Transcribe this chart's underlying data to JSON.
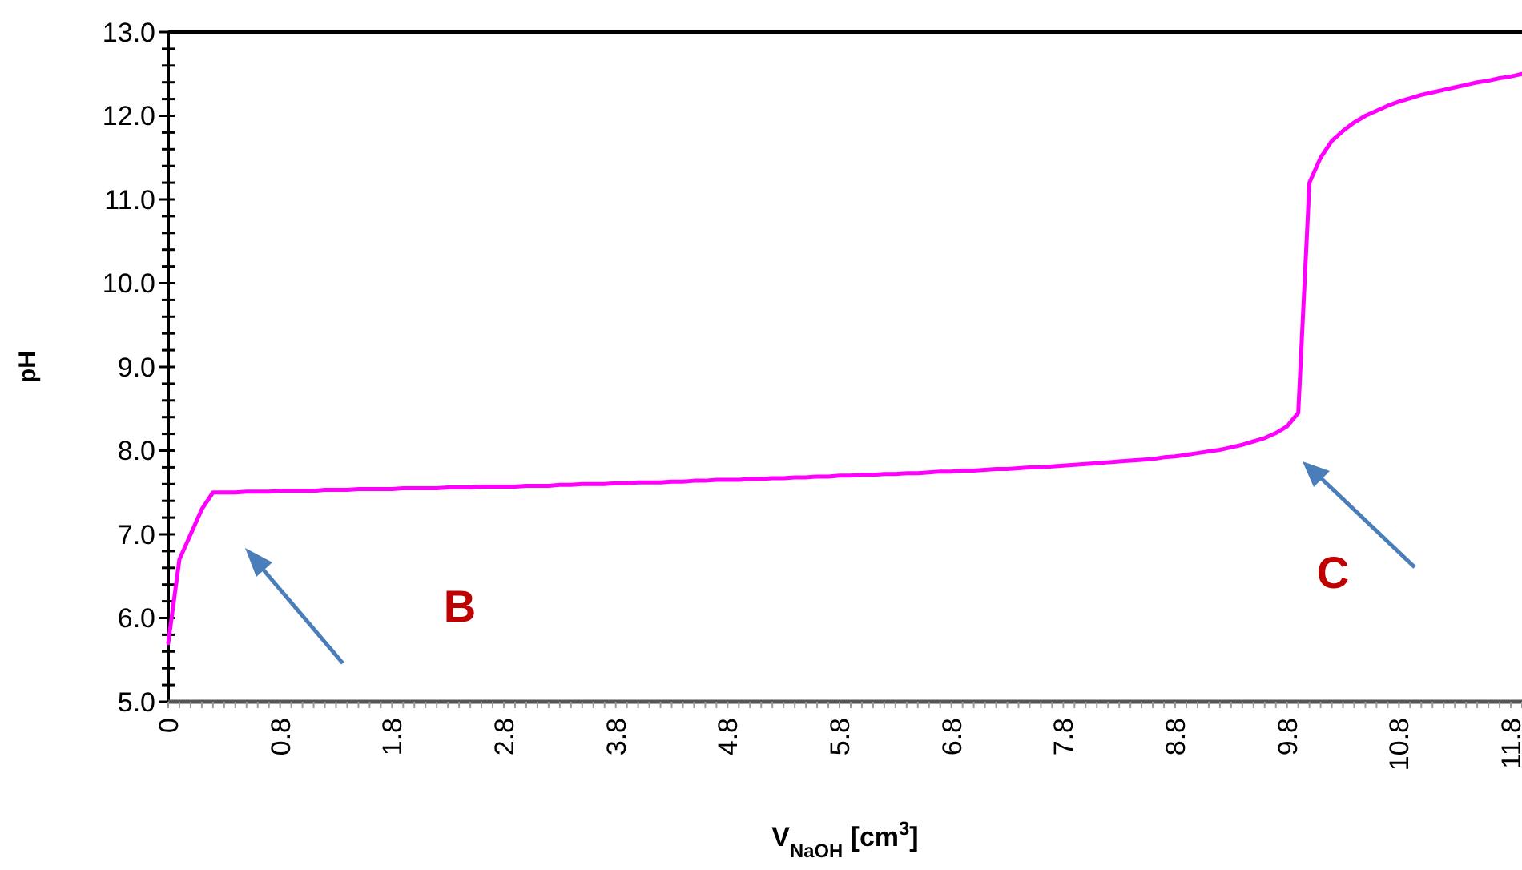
{
  "chart_data": {
    "type": "line",
    "xlabel": "V$_{NaOH}$ [cm$^{3}$]",
    "ylabel": "pH",
    "categories": [
      "0",
      null,
      null,
      null,
      null,
      null,
      null,
      null,
      null,
      null,
      "0.8",
      null,
      null,
      null,
      null,
      null,
      null,
      null,
      null,
      null,
      "1.8",
      null,
      null,
      null,
      null,
      null,
      null,
      null,
      null,
      null,
      "2.8",
      null,
      null,
      null,
      null,
      null,
      null,
      null,
      null,
      null,
      "3.8",
      null,
      null,
      null,
      null,
      null,
      null,
      null,
      null,
      null,
      "4.8",
      null,
      null,
      null,
      null,
      null,
      null,
      null,
      null,
      null,
      "5.8",
      null,
      null,
      null,
      null,
      null,
      null,
      null,
      null,
      null,
      "6.8",
      null,
      null,
      null,
      null,
      null,
      null,
      null,
      null,
      null,
      "7.8",
      null,
      null,
      null,
      null,
      null,
      null,
      null,
      null,
      null,
      "8.8",
      null,
      null,
      null,
      null,
      null,
      null,
      null,
      null,
      null,
      "9.8",
      null,
      null,
      null,
      null,
      null,
      null,
      null,
      null,
      null,
      "10.8",
      null,
      null,
      null,
      null,
      null,
      null,
      null,
      null,
      null,
      "11.8",
      null
    ],
    "series": [
      {
        "color": "#ff00ff",
        "values": [
          5.7,
          6.7,
          7.0,
          7.3,
          7.5,
          7.5,
          7.5,
          7.51,
          7.51,
          7.51,
          7.52,
          7.52,
          7.52,
          7.52,
          7.53,
          7.53,
          7.53,
          7.54,
          7.54,
          7.54,
          7.54,
          7.55,
          7.55,
          7.55,
          7.55,
          7.56,
          7.56,
          7.56,
          7.57,
          7.57,
          7.57,
          7.57,
          7.58,
          7.58,
          7.58,
          7.59,
          7.59,
          7.6,
          7.6,
          7.6,
          7.61,
          7.61,
          7.62,
          7.62,
          7.62,
          7.63,
          7.63,
          7.64,
          7.64,
          7.65,
          7.65,
          7.65,
          7.66,
          7.66,
          7.67,
          7.67,
          7.68,
          7.68,
          7.69,
          7.69,
          7.7,
          7.7,
          7.71,
          7.71,
          7.72,
          7.72,
          7.73,
          7.73,
          7.74,
          7.75,
          7.75,
          7.76,
          7.76,
          7.77,
          7.78,
          7.78,
          7.79,
          7.8,
          7.8,
          7.81,
          7.82,
          7.83,
          7.84,
          7.85,
          7.86,
          7.87,
          7.88,
          7.89,
          7.9,
          7.92,
          7.93,
          7.95,
          7.97,
          7.99,
          8.01,
          8.04,
          8.07,
          8.11,
          8.15,
          8.21,
          8.29,
          8.45,
          11.2,
          11.5,
          11.7,
          11.82,
          11.92,
          12.0,
          12.06,
          12.12,
          12.17,
          12.21,
          12.25,
          12.28,
          12.31,
          12.34,
          12.37,
          12.4,
          12.42,
          12.45,
          12.47,
          12.5
        ]
      }
    ],
    "ylim": [
      5,
      13
    ],
    "yticks": [
      {
        "value": 5,
        "label": "5.0"
      },
      {
        "value": 5.2,
        "label": null
      },
      {
        "value": 5.4,
        "label": null
      },
      {
        "value": 5.6,
        "label": null
      },
      {
        "value": 5.8,
        "label": null
      },
      {
        "value": 6,
        "label": "6.0"
      },
      {
        "value": 6.2,
        "label": null
      },
      {
        "value": 6.4,
        "label": null
      },
      {
        "value": 6.6,
        "label": null
      },
      {
        "value": 6.8,
        "label": null
      },
      {
        "value": 7,
        "label": "7.0"
      },
      {
        "value": 7.2,
        "label": null
      },
      {
        "value": 7.4,
        "label": null
      },
      {
        "value": 7.6,
        "label": null
      },
      {
        "value": 7.8,
        "label": null
      },
      {
        "value": 8,
        "label": "8.0"
      },
      {
        "value": 8.2,
        "label": null
      },
      {
        "value": 8.4,
        "label": null
      },
      {
        "value": 8.6,
        "label": null
      },
      {
        "value": 8.8,
        "label": null
      },
      {
        "value": 9,
        "label": "9.0"
      },
      {
        "value": 9.2,
        "label": null
      },
      {
        "value": 9.4,
        "label": null
      },
      {
        "value": 9.6,
        "label": null
      },
      {
        "value": 9.8,
        "label": null
      },
      {
        "value": 10,
        "label": "10.0"
      },
      {
        "value": 10.2,
        "label": null
      },
      {
        "value": 10.4,
        "label": null
      },
      {
        "value": 10.6,
        "label": null
      },
      {
        "value": 10.8,
        "label": null
      },
      {
        "value": 11,
        "label": "11.0"
      },
      {
        "value": 11.2,
        "label": null
      },
      {
        "value": 11.4,
        "label": null
      },
      {
        "value": 11.6,
        "label": null
      },
      {
        "value": 11.8,
        "label": null
      },
      {
        "value": 12,
        "label": "12.0"
      },
      {
        "value": 12.2,
        "label": null
      },
      {
        "value": 12.4,
        "label": null
      },
      {
        "value": 12.6,
        "label": null
      },
      {
        "value": 12.8,
        "label": null
      },
      {
        "value": 13,
        "label": "13.0"
      }
    ],
    "annotations": [
      "B",
      "C"
    ],
    "grid": false,
    "marker": "none",
    "line_style": "solid"
  }
}
